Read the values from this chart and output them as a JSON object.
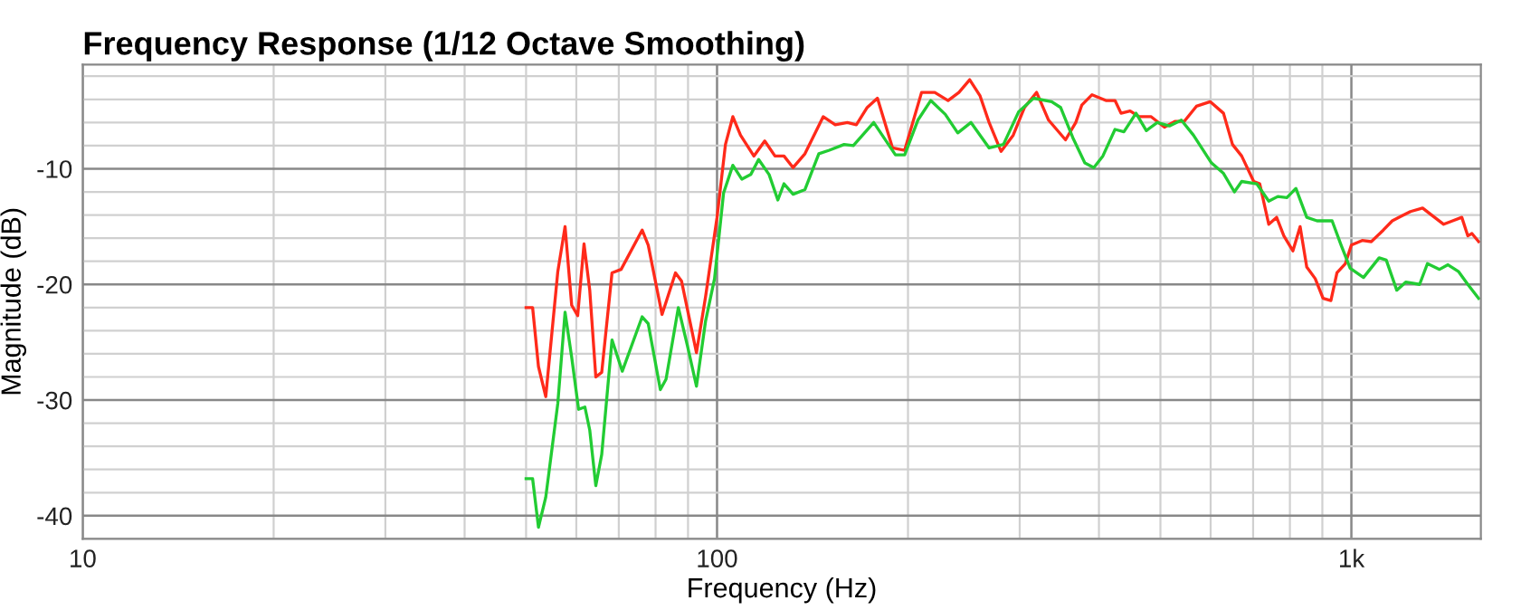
{
  "chart_data": {
    "type": "line",
    "title": "Frequency Response (1/12 Octave Smoothing)",
    "xlabel": "Frequency (Hz)",
    "ylabel": "Magnitude (dB)",
    "log": "x",
    "grid": true,
    "marker": "none",
    "line_style": "solid",
    "xlim": [
      10,
      1600
    ],
    "xticks": [
      10,
      100,
      {
        "value": 1000,
        "label": "1k"
      }
    ],
    "ylim": [
      -42,
      -1
    ],
    "yticks": [
      -10,
      -20,
      -30,
      -40
    ],
    "series": [
      {
        "color": "#ff2a1a",
        "x": [
          50,
          51.2,
          52.3,
          53.7,
          56.1,
          57.6,
          59.0,
          60.3,
          61.7,
          63.0,
          64.4,
          65.8,
          68.3,
          70.6,
          76.2,
          77.9,
          81.9,
          86.0,
          87.9,
          92.8,
          95.9,
          100,
          103.1,
          105.9,
          108.9,
          114.3,
          118.9,
          123.4,
          127.5,
          131.8,
          137.6,
          147.0,
          153.6,
          160.5,
          165.8,
          172.5,
          179.0,
          189.1,
          197.6,
          210.1,
          220.4,
          231.3,
          240.6,
          250.2,
          259.8,
          268.5,
          280.4,
          293.0,
          305.3,
          319.0,
          333.2,
          354.3,
          367.7,
          375.8,
          390.1,
          410.2,
          424.0,
          433.4,
          447.9,
          462.8,
          483.5,
          507.3,
          527.7,
          545.3,
          569.7,
          598.9,
          628.6,
          649.5,
          671.5,
          701.5,
          717.0,
          740.9,
          762.3,
          782.6,
          808.7,
          830.2,
          850.4,
          877.0,
          902.3,
          928.3,
          949.0,
          978.4,
          1000,
          1040,
          1075,
          1123,
          1160,
          1199,
          1239,
          1295,
          1338,
          1398,
          1444,
          1493,
          1526,
          1549,
          1587
        ],
        "values": [
          -22.0,
          -22.0,
          -27.1,
          -29.7,
          -18.9,
          -15.0,
          -21.8,
          -22.7,
          -16.5,
          -20.5,
          -28.0,
          -27.6,
          -19.0,
          -18.7,
          -15.3,
          -16.6,
          -22.6,
          -19.0,
          -19.7,
          -25.9,
          -21.1,
          -14.2,
          -7.9,
          -5.5,
          -7.1,
          -8.9,
          -7.6,
          -8.9,
          -8.9,
          -9.9,
          -8.7,
          -5.5,
          -6.2,
          -6.0,
          -6.2,
          -4.7,
          -3.9,
          -8.2,
          -8.4,
          -3.4,
          -3.4,
          -4.1,
          -3.4,
          -2.3,
          -3.7,
          -6.0,
          -8.5,
          -7.1,
          -4.7,
          -3.4,
          -5.8,
          -7.5,
          -6.0,
          -4.5,
          -3.6,
          -4.1,
          -4.1,
          -5.2,
          -5.0,
          -5.5,
          -5.5,
          -6.4,
          -5.9,
          -5.9,
          -4.6,
          -4.2,
          -5.2,
          -7.9,
          -8.9,
          -11.1,
          -11.3,
          -14.8,
          -14.2,
          -15.8,
          -17.1,
          -15.0,
          -18.5,
          -19.5,
          -21.2,
          -21.4,
          -19.0,
          -18.2,
          -16.6,
          -16.2,
          -16.3,
          -15.3,
          -14.5,
          -14.1,
          -13.7,
          -13.4,
          -14.0,
          -14.8,
          -14.5,
          -14.2,
          -15.8,
          -15.6,
          -16.3
        ]
      },
      {
        "color": "#22cc33",
        "x": [
          50,
          51.2,
          52.3,
          53.7,
          56.1,
          57.6,
          59.0,
          60.5,
          61.9,
          63.0,
          64.4,
          65.8,
          68.3,
          70.9,
          76.2,
          77.9,
          81.4,
          83.1,
          86.9,
          89.8,
          92.8,
          95.9,
          99.1,
          102.4,
          105.9,
          109.4,
          113.0,
          116.3,
          120.8,
          124.7,
          127.5,
          131.8,
          137.6,
          144.7,
          150.3,
          158.6,
          164.0,
          176.6,
          191.1,
          197.6,
          207.3,
          217.2,
          229.0,
          239.6,
          251.3,
          268.5,
          282.8,
          298.7,
          315.5,
          336.9,
          348.0,
          363.7,
          380.0,
          392.6,
          405.7,
          424.0,
          437.9,
          457.6,
          475.1,
          494.3,
          516.4,
          539.5,
          563.7,
          601.8,
          628.6,
          654.0,
          671.5,
          709.2,
          740.9,
          765.6,
          791.2,
          817.6,
          850.4,
          882.7,
          932.4,
          963.4,
          995.6,
          1045,
          1106,
          1135,
          1179,
          1218,
          1281,
          1318,
          1377,
          1420,
          1476,
          1526,
          1587
        ],
        "values": [
          -36.8,
          -36.8,
          -41.0,
          -38.4,
          -30.3,
          -22.4,
          -26.3,
          -30.8,
          -30.6,
          -32.6,
          -37.4,
          -34.7,
          -24.8,
          -27.5,
          -22.8,
          -23.4,
          -29.1,
          -28.2,
          -22.0,
          -25.3,
          -28.8,
          -23.2,
          -19.5,
          -12.1,
          -9.7,
          -10.9,
          -10.5,
          -9.2,
          -10.5,
          -12.7,
          -11.3,
          -12.2,
          -11.8,
          -8.7,
          -8.4,
          -7.9,
          -8.0,
          -6.0,
          -8.8,
          -8.8,
          -5.8,
          -4.1,
          -5.3,
          -6.9,
          -6.0,
          -8.2,
          -7.9,
          -5.1,
          -3.9,
          -4.2,
          -4.7,
          -7.3,
          -9.5,
          -9.9,
          -8.9,
          -6.6,
          -6.8,
          -5.2,
          -6.7,
          -6.0,
          -6.3,
          -5.8,
          -7.1,
          -9.5,
          -10.4,
          -12.0,
          -11.1,
          -11.3,
          -12.8,
          -12.4,
          -12.5,
          -11.7,
          -14.2,
          -14.5,
          -14.5,
          -16.6,
          -18.6,
          -19.4,
          -17.7,
          -17.9,
          -20.5,
          -19.8,
          -20.0,
          -18.2,
          -18.7,
          -18.3,
          -18.9,
          -20.0,
          -21.2
        ]
      }
    ]
  }
}
